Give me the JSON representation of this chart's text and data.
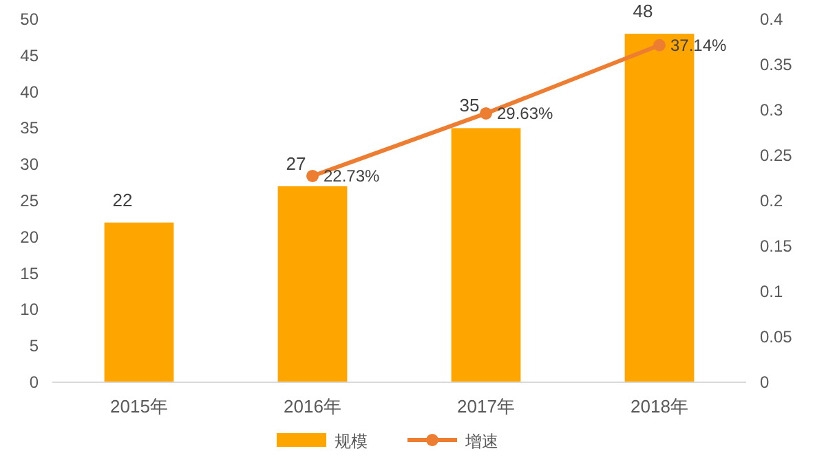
{
  "chart_data": {
    "type": "bar",
    "categories": [
      "2015年",
      "2016年",
      "2017年",
      "2018年"
    ],
    "series": [
      {
        "name": "规模",
        "color": "#ffa500",
        "values": [
          22,
          27,
          35,
          48
        ],
        "value_labels": [
          "22",
          "27",
          "35",
          "48"
        ]
      },
      {
        "name": "增速",
        "type": "line",
        "axis": "y2",
        "color": "#ed7d31",
        "values": [
          null,
          0.2273,
          0.2963,
          0.3714
        ],
        "value_labels": [
          null,
          "22.73%",
          "29.63%",
          "37.14%"
        ]
      }
    ],
    "ylim": [
      0,
      50
    ],
    "yticks": [
      0,
      5,
      10,
      15,
      20,
      25,
      30,
      35,
      40,
      45,
      50
    ],
    "y2lim": [
      0,
      0.4
    ],
    "y2ticks": [
      0,
      0.05,
      0.1,
      0.15,
      0.2,
      0.25,
      0.3,
      0.35,
      0.4
    ],
    "grid": false,
    "legend": "bottom",
    "marker": "circle",
    "line_style": "solid"
  }
}
